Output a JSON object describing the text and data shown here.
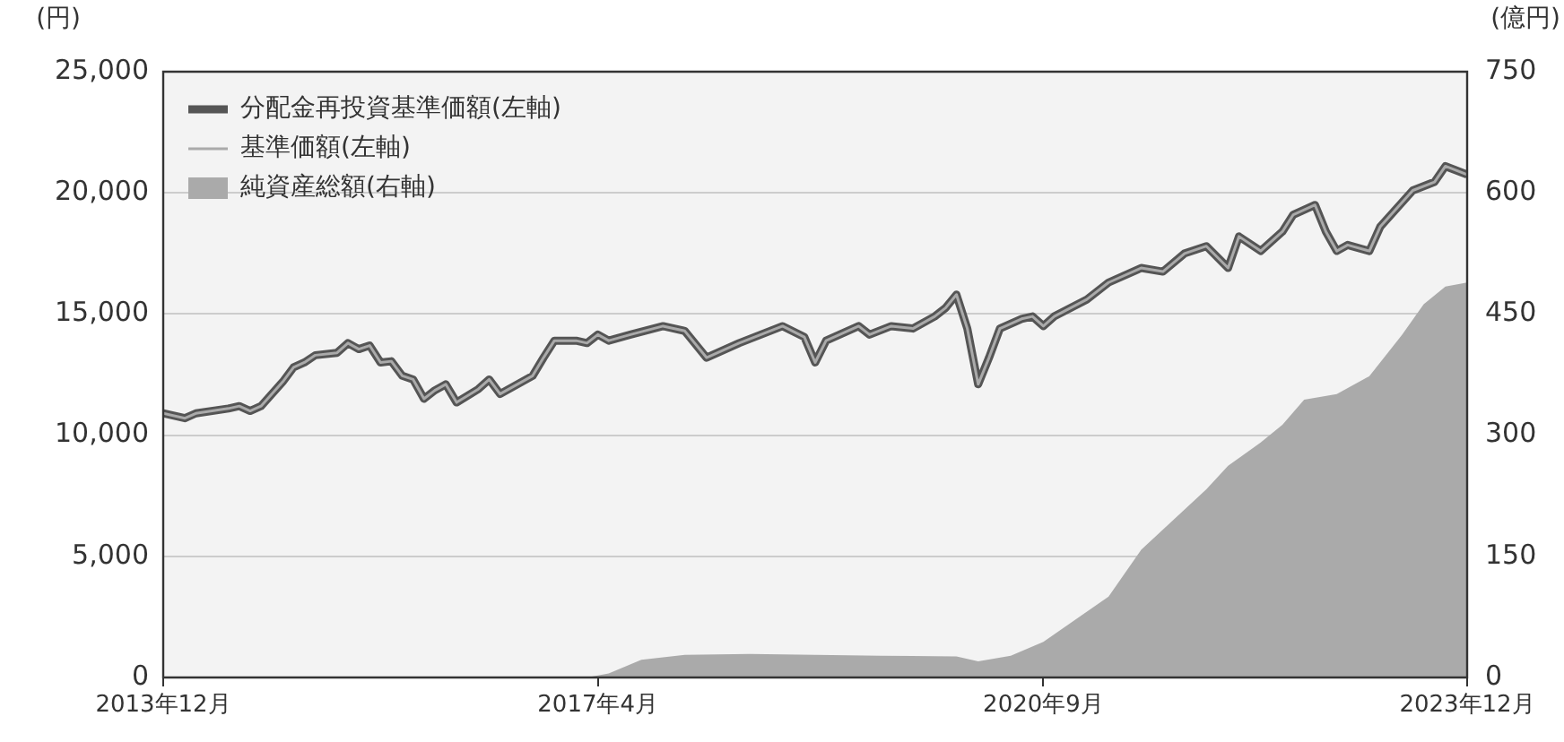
{
  "chart_data": {
    "type": "line",
    "ylabel": "(円)",
    "y2label": "(億円)",
    "xlim": [
      "2013-12",
      "2023-12"
    ],
    "xticks": [
      {
        "value": "2013-12",
        "label": "2013年12月"
      },
      {
        "value": "2017-04",
        "label": "2017年4月"
      },
      {
        "value": "2020-09",
        "label": "2020年9月"
      },
      {
        "value": "2023-12",
        "label": "2023年12月"
      }
    ],
    "ylim": [
      0,
      25000
    ],
    "yticks": [
      {
        "value": 0,
        "label": "0"
      },
      {
        "value": 5000,
        "label": "5,000"
      },
      {
        "value": 10000,
        "label": "10,000"
      },
      {
        "value": 15000,
        "label": "15,000"
      },
      {
        "value": 20000,
        "label": "20,000"
      },
      {
        "value": 25000,
        "label": "25,000"
      }
    ],
    "y2lim": [
      0,
      750
    ],
    "y2ticks": [
      0,
      150,
      300,
      450,
      600,
      750
    ],
    "grid": "y",
    "legend": "top left",
    "marker": "none",
    "x": [
      "2013-12",
      "2014-02",
      "2014-03",
      "2014-06",
      "2014-07",
      "2014-08",
      "2014-09",
      "2014-11",
      "2014-12",
      "2015-01",
      "2015-02",
      "2015-04",
      "2015-05",
      "2015-06",
      "2015-07",
      "2015-08",
      "2015-09",
      "2015-10",
      "2015-11",
      "2015-12",
      "2016-01",
      "2016-02",
      "2016-03",
      "2016-05",
      "2016-06",
      "2016-07",
      "2016-09",
      "2016-10",
      "2016-11",
      "2016-12",
      "2017-02",
      "2017-03",
      "2017-04",
      "2017-05",
      "2017-07",
      "2017-10",
      "2017-12",
      "2018-02",
      "2018-05",
      "2018-07",
      "2018-09",
      "2018-11",
      "2018-12",
      "2019-01",
      "2019-04",
      "2019-05",
      "2019-07",
      "2019-09",
      "2019-11",
      "2019-12",
      "2020-01",
      "2020-02",
      "2020-03",
      "2020-04",
      "2020-05",
      "2020-07",
      "2020-08",
      "2020-09",
      "2020-10",
      "2021-01",
      "2021-03",
      "2021-06",
      "2021-08",
      "2021-10",
      "2021-12",
      "2022-02",
      "2022-03",
      "2022-05",
      "2022-07",
      "2022-08",
      "2022-10",
      "2022-11",
      "2022-12",
      "2023-01",
      "2023-03",
      "2023-04",
      "2023-06",
      "2023-07",
      "2023-09",
      "2023-10",
      "2023-12"
    ],
    "series": [
      {
        "name": "分配金再投資基準価額(左軸)",
        "type": "line",
        "color": "#555555",
        "values": [
          10900,
          10700,
          10900,
          11100,
          11200,
          11000,
          11200,
          12200,
          12800,
          13000,
          13300,
          13400,
          13800,
          13550,
          13700,
          13000,
          13050,
          12450,
          12300,
          11500,
          11850,
          12100,
          11350,
          11900,
          12300,
          11700,
          12200,
          12450,
          13200,
          13900,
          13900,
          13800,
          14150,
          13900,
          14150,
          14500,
          14300,
          13200,
          13800,
          14150,
          14500,
          14050,
          13000,
          13900,
          14500,
          14150,
          14500,
          14400,
          14900,
          15250,
          15800,
          14400,
          12100,
          13200,
          14400,
          14800,
          14900,
          14500,
          14900,
          15600,
          16300,
          16900,
          16750,
          17500,
          17800,
          16900,
          18200,
          17600,
          18400,
          19100,
          19500,
          18400,
          17600,
          17850,
          17600,
          18600,
          19600,
          20100,
          20450,
          21100,
          20750
        ]
      },
      {
        "name": "基準価額(左軸)",
        "type": "line",
        "color": "#aaaaaa",
        "values": [
          10900,
          10700,
          10900,
          11100,
          11200,
          11000,
          11200,
          12200,
          12800,
          13000,
          13300,
          13400,
          13800,
          13550,
          13700,
          13000,
          13050,
          12450,
          12300,
          11500,
          11850,
          12100,
          11350,
          11900,
          12300,
          11700,
          12200,
          12450,
          13200,
          13900,
          13900,
          13800,
          14150,
          13900,
          14150,
          14500,
          14300,
          13200,
          13800,
          14150,
          14500,
          14050,
          13000,
          13900,
          14500,
          14150,
          14500,
          14400,
          14900,
          15250,
          15800,
          14400,
          12100,
          13200,
          14400,
          14800,
          14900,
          14500,
          14900,
          15600,
          16300,
          16900,
          16750,
          17500,
          17800,
          16900,
          18200,
          17600,
          18400,
          19100,
          19500,
          18400,
          17600,
          17850,
          17600,
          18600,
          19600,
          20100,
          20450,
          21100,
          20750
        ]
      },
      {
        "name": "純資産総額(右軸)",
        "type": "area",
        "axis": "y2",
        "color": "#aaaaaa",
        "x": [
          "2017-03",
          "2017-05",
          "2017-08",
          "2017-12",
          "2018-06",
          "2019-06",
          "2020-01",
          "2020-03",
          "2020-06",
          "2020-09",
          "2021-03",
          "2021-06",
          "2021-12",
          "2022-02",
          "2022-05",
          "2022-07",
          "2022-09",
          "2022-12",
          "2023-03",
          "2023-06",
          "2023-08",
          "2023-10",
          "2023-12"
        ],
        "values": [
          0,
          5,
          22,
          28,
          29,
          27,
          26,
          20,
          27,
          44,
          100,
          158,
          233,
          262,
          291,
          313,
          344,
          351,
          373,
          424,
          462,
          484,
          489
        ]
      }
    ]
  }
}
